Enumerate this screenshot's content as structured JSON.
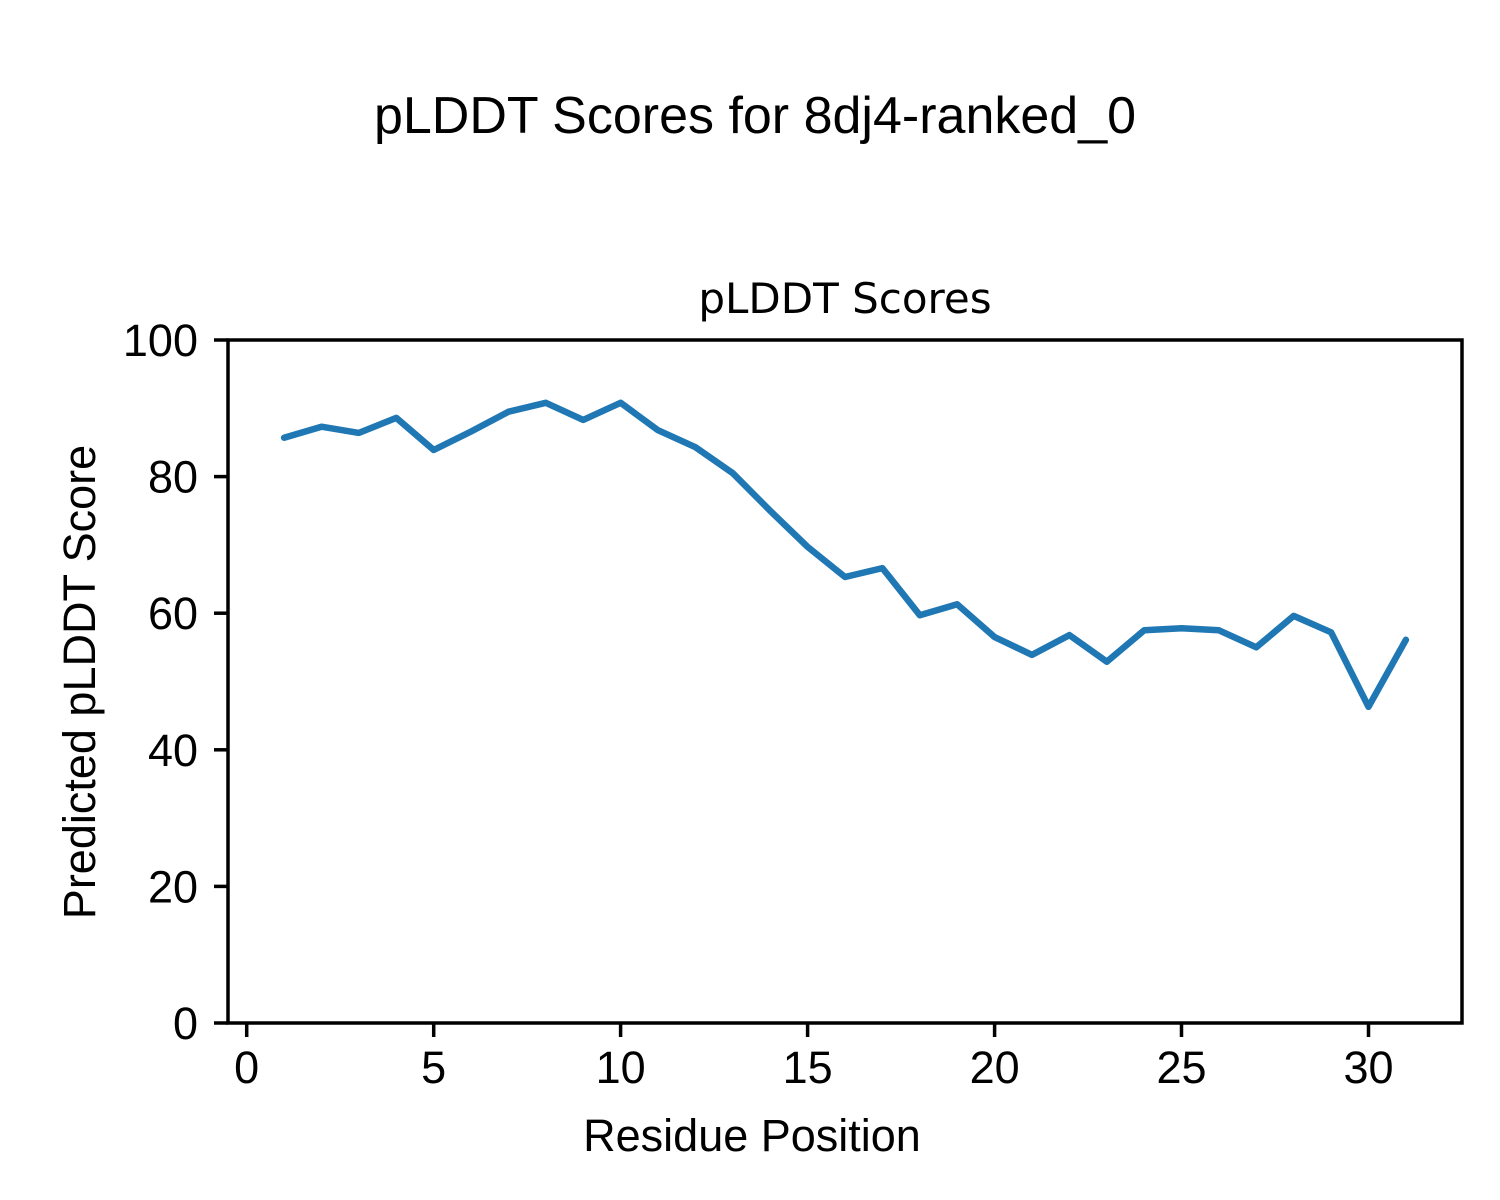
{
  "figure": {
    "suptitle": "pLDDT Scores for 8dj4-ranked_0"
  },
  "chart_data": {
    "type": "line",
    "title": "pLDDT Scores",
    "xlabel": "Residue Position",
    "ylabel": "Predicted pLDDT Score",
    "x": [
      1,
      2,
      3,
      4,
      5,
      6,
      7,
      8,
      9,
      10,
      11,
      12,
      13,
      14,
      15,
      16,
      17,
      18,
      19,
      20,
      21,
      22,
      23,
      24,
      25,
      26,
      27,
      28,
      29,
      30,
      31
    ],
    "series": [
      {
        "name": "pLDDT",
        "values": [
          85.7,
          87.3,
          86.4,
          88.6,
          83.9,
          86.6,
          89.5,
          90.8,
          88.3,
          90.8,
          86.8,
          84.3,
          80.5,
          75.0,
          69.7,
          65.3,
          66.6,
          59.7,
          61.3,
          56.5,
          53.9,
          56.8,
          52.9,
          57.5,
          57.8,
          57.5,
          55.0,
          59.6,
          57.2,
          46.3,
          56.1
        ]
      }
    ],
    "xlim": [
      -0.5,
      32.5
    ],
    "ylim": [
      0,
      100
    ],
    "x_ticks": [
      0,
      5,
      10,
      15,
      20,
      25,
      30
    ],
    "y_ticks": [
      0,
      20,
      40,
      60,
      80,
      100
    ],
    "grid": false,
    "legend": null,
    "line_color": "#1f77b4",
    "spine_color": "#000000",
    "background_color": "#ffffff"
  }
}
